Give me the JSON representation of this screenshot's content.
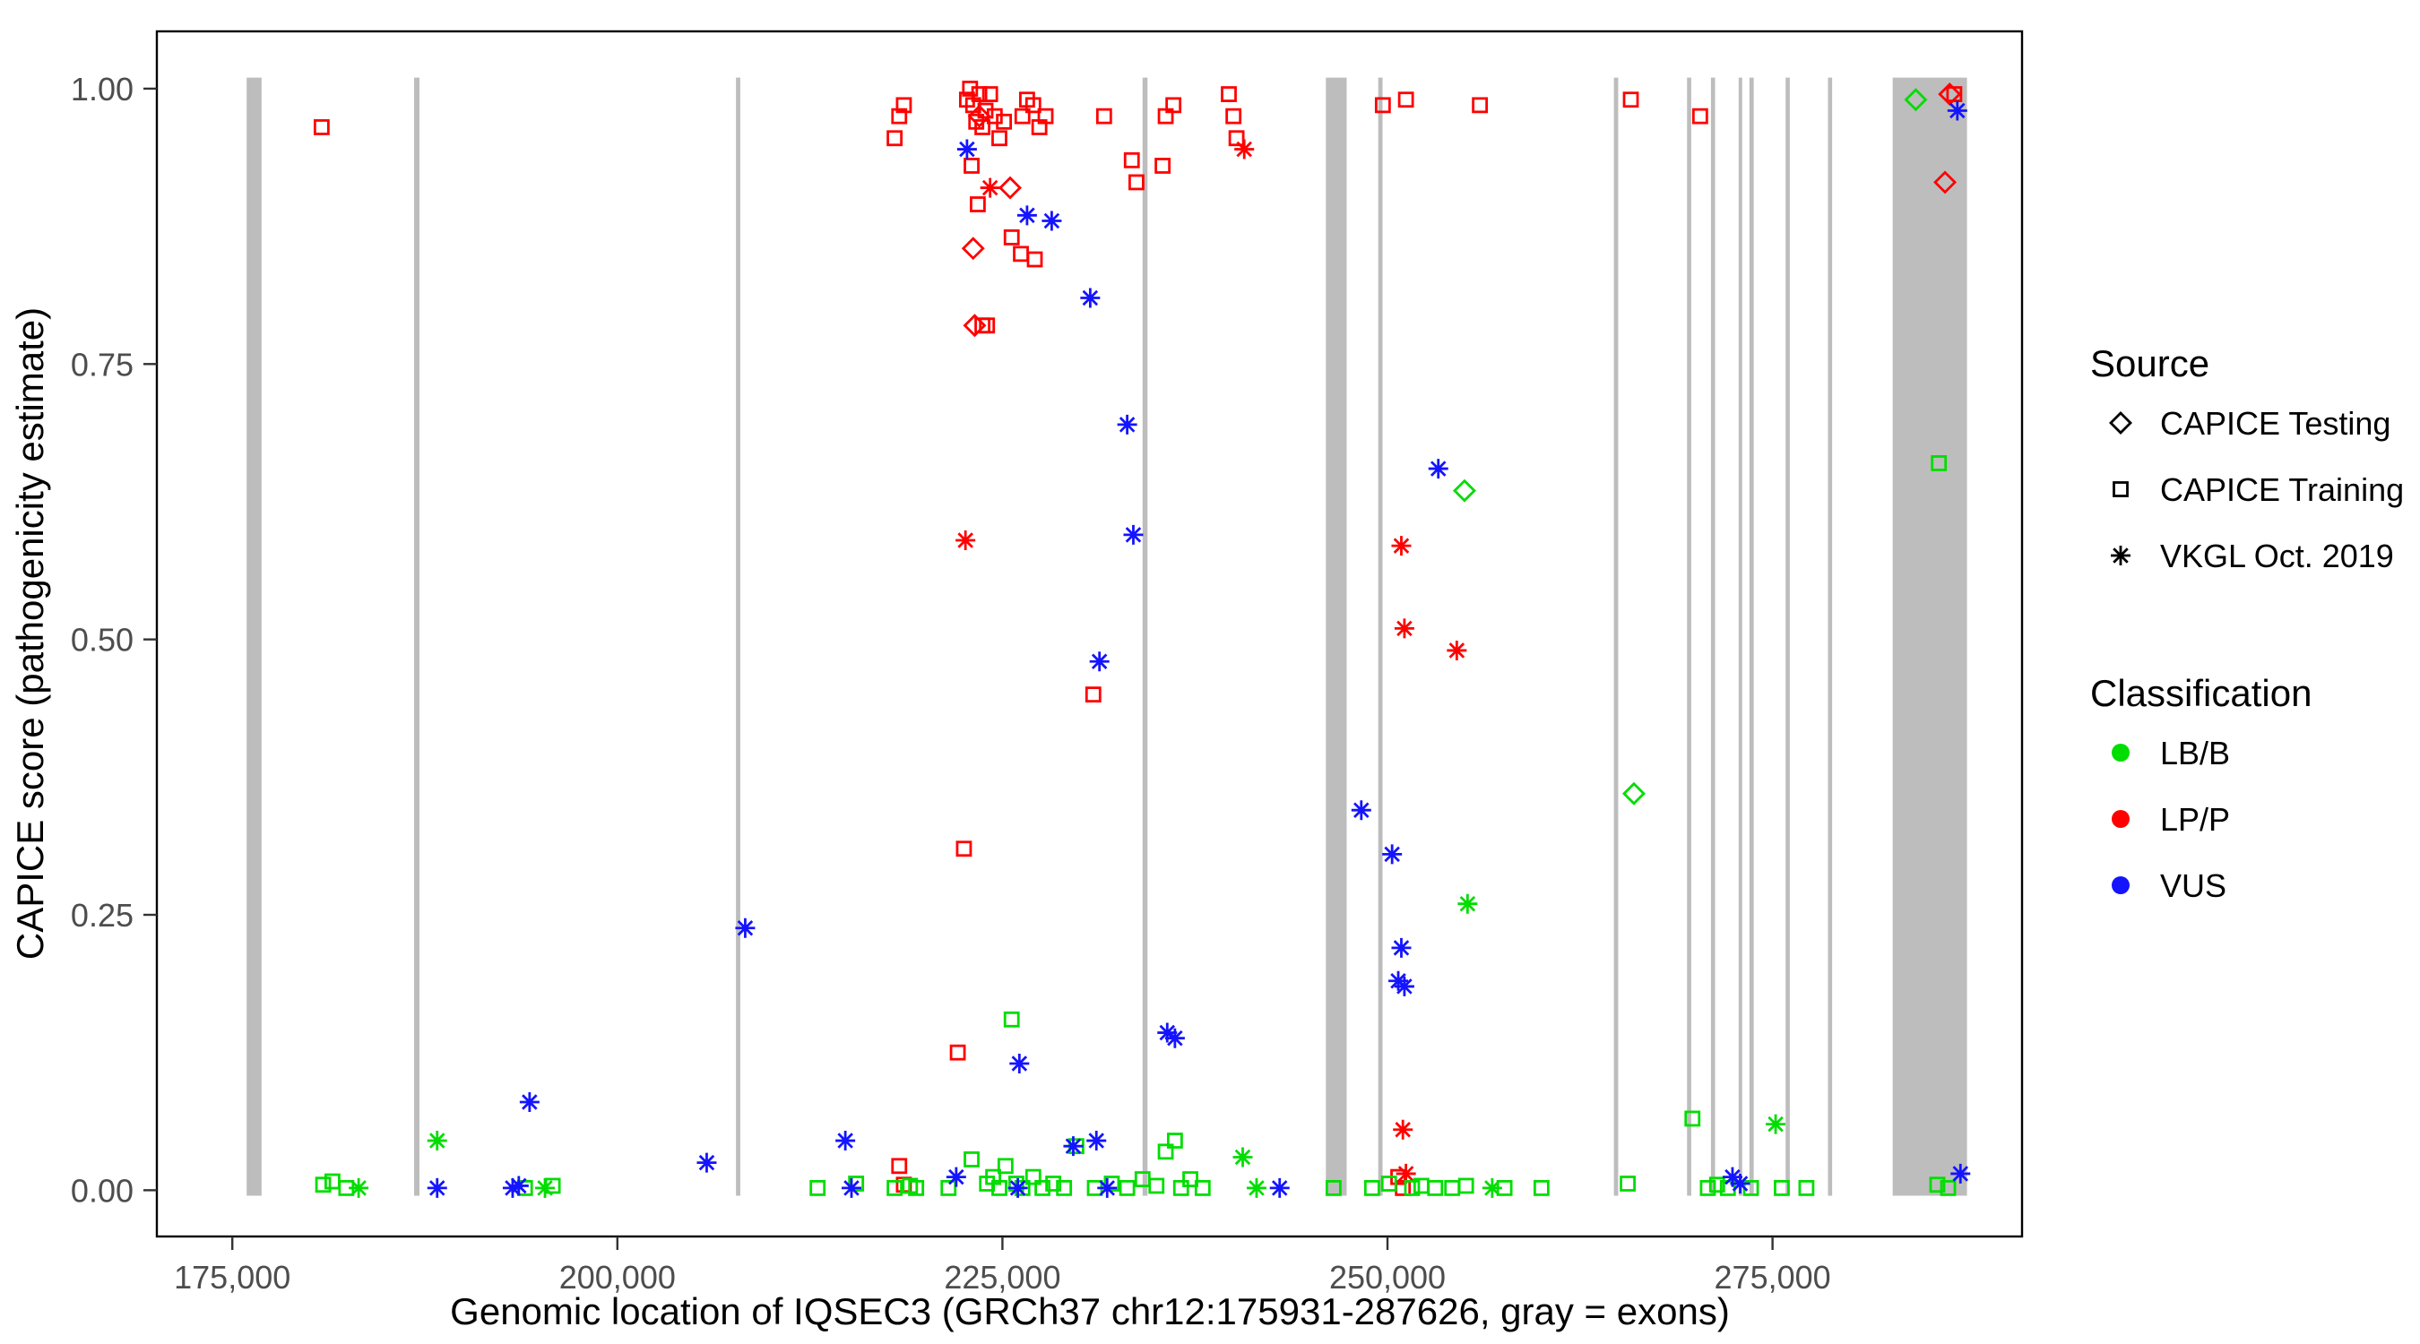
{
  "chart_data": {
    "type": "scatter",
    "title": "",
    "xlabel": "Genomic location of IQSEC3 (GRCh37 chr12:175931-287626, gray = exons)",
    "ylabel": "CAPICE score (pathogenicity estimate)",
    "xlim": [
      170100,
      291200
    ],
    "ylim": [
      -0.042,
      1.052
    ],
    "x_ticks": {
      "values": [
        175000,
        200000,
        225000,
        250000,
        275000
      ],
      "labels": [
        "175,000",
        "200,000",
        "225,000",
        "250,000",
        "275,000"
      ]
    },
    "y_ticks": {
      "values": [
        0,
        0.25,
        0.5,
        0.75,
        1.0
      ],
      "labels": [
        "0.00",
        "0.25",
        "0.50",
        "0.75",
        "1.00"
      ]
    },
    "grid": "off",
    "exon_color": "#BDBDBD",
    "exon_bands": [
      [
        175931,
        176900
      ],
      [
        186800,
        187150
      ],
      [
        207700,
        207980
      ],
      [
        234100,
        234420
      ],
      [
        246000,
        247350
      ],
      [
        249400,
        249680
      ],
      [
        264700,
        264980
      ],
      [
        269450,
        269720
      ],
      [
        271000,
        271270
      ],
      [
        272800,
        273030
      ],
      [
        273500,
        273780
      ],
      [
        275850,
        276120
      ],
      [
        278600,
        278870
      ],
      [
        282800,
        287626
      ]
    ],
    "colors": {
      "LB/B": "#00DD00",
      "LP/P": "#FF0000",
      "VUS": "#1414FF"
    },
    "legend": {
      "position": "right",
      "source": {
        "title": "Source",
        "items": [
          {
            "shape": "diamond",
            "label": "CAPICE Testing"
          },
          {
            "shape": "square",
            "label": "CAPICE Training"
          },
          {
            "shape": "asterisk",
            "label": "VKGL Oct. 2019"
          }
        ]
      },
      "classification": {
        "title": "Classification",
        "items": [
          {
            "cls": "LB/B",
            "label": "LB/B"
          },
          {
            "cls": "LP/P",
            "label": "LP/P"
          },
          {
            "cls": "VUS",
            "label": "VUS"
          }
        ]
      }
    },
    "points": [
      [
        180800,
        0.965,
        "square",
        "LP/P"
      ],
      [
        218000,
        0.955,
        "square",
        "LP/P"
      ],
      [
        218300,
        0.975,
        "square",
        "LP/P"
      ],
      [
        218600,
        0.985,
        "square",
        "LP/P"
      ],
      [
        222700,
        0.99,
        "square",
        "LP/P"
      ],
      [
        222900,
        1.0,
        "square",
        "LP/P"
      ],
      [
        223100,
        0.985,
        "square",
        "LP/P"
      ],
      [
        223300,
        0.97,
        "square",
        "LP/P"
      ],
      [
        223500,
        0.995,
        "square",
        "LP/P"
      ],
      [
        223700,
        0.965,
        "square",
        "LP/P"
      ],
      [
        223900,
        0.98,
        "square",
        "LP/P"
      ],
      [
        224200,
        0.995,
        "square",
        "LP/P"
      ],
      [
        224500,
        0.975,
        "square",
        "LP/P"
      ],
      [
        224800,
        0.955,
        "square",
        "LP/P"
      ],
      [
        225100,
        0.97,
        "square",
        "LP/P"
      ],
      [
        226300,
        0.975,
        "square",
        "LP/P"
      ],
      [
        226600,
        0.99,
        "square",
        "LP/P"
      ],
      [
        227000,
        0.985,
        "square",
        "LP/P"
      ],
      [
        227400,
        0.965,
        "square",
        "LP/P"
      ],
      [
        227800,
        0.975,
        "square",
        "LP/P"
      ],
      [
        223000,
        0.93,
        "square",
        "LP/P"
      ],
      [
        223400,
        0.895,
        "square",
        "LP/P"
      ],
      [
        225600,
        0.865,
        "square",
        "LP/P"
      ],
      [
        226200,
        0.85,
        "square",
        "LP/P"
      ],
      [
        227100,
        0.845,
        "square",
        "LP/P"
      ],
      [
        223700,
        0.785,
        "square",
        "LP/P"
      ],
      [
        224000,
        0.785,
        "square",
        "LP/P"
      ],
      [
        230900,
        0.45,
        "square",
        "LP/P"
      ],
      [
        222500,
        0.31,
        "square",
        "LP/P"
      ],
      [
        222100,
        0.125,
        "square",
        "LP/P"
      ],
      [
        218300,
        0.022,
        "square",
        "LP/P"
      ],
      [
        218600,
        0.005,
        "square",
        "LP/P"
      ],
      [
        231600,
        0.975,
        "square",
        "LP/P"
      ],
      [
        233400,
        0.935,
        "square",
        "LP/P"
      ],
      [
        233700,
        0.915,
        "square",
        "LP/P"
      ],
      [
        235400,
        0.93,
        "square",
        "LP/P"
      ],
      [
        235600,
        0.975,
        "square",
        "LP/P"
      ],
      [
        236100,
        0.985,
        "square",
        "LP/P"
      ],
      [
        239700,
        0.995,
        "square",
        "LP/P"
      ],
      [
        240000,
        0.975,
        "square",
        "LP/P"
      ],
      [
        240200,
        0.955,
        "square",
        "LP/P"
      ],
      [
        249700,
        0.985,
        "square",
        "LP/P"
      ],
      [
        251200,
        0.99,
        "square",
        "LP/P"
      ],
      [
        256000,
        0.985,
        "square",
        "LP/P"
      ],
      [
        250700,
        0.012,
        "square",
        "LP/P"
      ],
      [
        251000,
        0.002,
        "square",
        "LP/P"
      ],
      [
        265800,
        0.99,
        "square",
        "LP/P"
      ],
      [
        270300,
        0.975,
        "square",
        "LP/P"
      ],
      [
        286800,
        0.995,
        "square",
        "LP/P"
      ],
      [
        223500,
        0.975,
        "diamond",
        "LP/P"
      ],
      [
        223100,
        0.855,
        "diamond",
        "LP/P"
      ],
      [
        225500,
        0.91,
        "diamond",
        "LP/P"
      ],
      [
        223200,
        0.785,
        "diamond",
        "LP/P"
      ],
      [
        286500,
        0.995,
        "diamond",
        "LP/P"
      ],
      [
        286200,
        0.915,
        "diamond",
        "LP/P"
      ],
      [
        224200,
        0.91,
        "asterisk",
        "LP/P"
      ],
      [
        240700,
        0.945,
        "asterisk",
        "LP/P"
      ],
      [
        222600,
        0.59,
        "asterisk",
        "LP/P"
      ],
      [
        250900,
        0.585,
        "asterisk",
        "LP/P"
      ],
      [
        251100,
        0.51,
        "asterisk",
        "LP/P"
      ],
      [
        254500,
        0.49,
        "asterisk",
        "LP/P"
      ],
      [
        251000,
        0.055,
        "asterisk",
        "LP/P"
      ],
      [
        251200,
        0.015,
        "asterisk",
        "LP/P"
      ],
      [
        180900,
        0.005,
        "square",
        "LB/B"
      ],
      [
        181500,
        0.008,
        "square",
        "LB/B"
      ],
      [
        182400,
        0.002,
        "square",
        "LB/B"
      ],
      [
        194000,
        0.002,
        "square",
        "LB/B"
      ],
      [
        195800,
        0.004,
        "square",
        "LB/B"
      ],
      [
        213000,
        0.002,
        "square",
        "LB/B"
      ],
      [
        215500,
        0.006,
        "square",
        "LB/B"
      ],
      [
        218000,
        0.002,
        "square",
        "LB/B"
      ],
      [
        219000,
        0.004,
        "square",
        "LB/B"
      ],
      [
        219400,
        0.002,
        "square",
        "LB/B"
      ],
      [
        221500,
        0.002,
        "square",
        "LB/B"
      ],
      [
        223000,
        0.028,
        "square",
        "LB/B"
      ],
      [
        224000,
        0.006,
        "square",
        "LB/B"
      ],
      [
        224400,
        0.012,
        "square",
        "LB/B"
      ],
      [
        224800,
        0.002,
        "square",
        "LB/B"
      ],
      [
        225200,
        0.022,
        "square",
        "LB/B"
      ],
      [
        225600,
        0.155,
        "square",
        "LB/B"
      ],
      [
        225900,
        0.006,
        "square",
        "LB/B"
      ],
      [
        226300,
        0.002,
        "square",
        "LB/B"
      ],
      [
        227000,
        0.012,
        "square",
        "LB/B"
      ],
      [
        227600,
        0.002,
        "square",
        "LB/B"
      ],
      [
        228300,
        0.006,
        "square",
        "LB/B"
      ],
      [
        229000,
        0.002,
        "square",
        "LB/B"
      ],
      [
        229800,
        0.04,
        "square",
        "LB/B"
      ],
      [
        231000,
        0.002,
        "square",
        "LB/B"
      ],
      [
        232100,
        0.006,
        "square",
        "LB/B"
      ],
      [
        233100,
        0.002,
        "square",
        "LB/B"
      ],
      [
        234100,
        0.01,
        "square",
        "LB/B"
      ],
      [
        235000,
        0.004,
        "square",
        "LB/B"
      ],
      [
        235600,
        0.035,
        "square",
        "LB/B"
      ],
      [
        236200,
        0.045,
        "square",
        "LB/B"
      ],
      [
        236600,
        0.002,
        "square",
        "LB/B"
      ],
      [
        237200,
        0.01,
        "square",
        "LB/B"
      ],
      [
        238000,
        0.002,
        "square",
        "LB/B"
      ],
      [
        246500,
        0.002,
        "square",
        "LB/B"
      ],
      [
        249000,
        0.002,
        "square",
        "LB/B"
      ],
      [
        250100,
        0.006,
        "square",
        "LB/B"
      ],
      [
        251600,
        0.002,
        "square",
        "LB/B"
      ],
      [
        252200,
        0.004,
        "square",
        "LB/B"
      ],
      [
        253100,
        0.002,
        "square",
        "LB/B"
      ],
      [
        254200,
        0.002,
        "square",
        "LB/B"
      ],
      [
        255100,
        0.004,
        "square",
        "LB/B"
      ],
      [
        257600,
        0.002,
        "square",
        "LB/B"
      ],
      [
        260000,
        0.002,
        "square",
        "LB/B"
      ],
      [
        265600,
        0.006,
        "square",
        "LB/B"
      ],
      [
        269800,
        0.065,
        "square",
        "LB/B"
      ],
      [
        270800,
        0.002,
        "square",
        "LB/B"
      ],
      [
        271400,
        0.005,
        "square",
        "LB/B"
      ],
      [
        272100,
        0.002,
        "square",
        "LB/B"
      ],
      [
        273600,
        0.002,
        "square",
        "LB/B"
      ],
      [
        275600,
        0.002,
        "square",
        "LB/B"
      ],
      [
        277200,
        0.002,
        "square",
        "LB/B"
      ],
      [
        285700,
        0.005,
        "square",
        "LB/B"
      ],
      [
        286400,
        0.002,
        "square",
        "LB/B"
      ],
      [
        285800,
        0.66,
        "square",
        "LB/B"
      ],
      [
        255000,
        0.635,
        "diamond",
        "LB/B"
      ],
      [
        266000,
        0.36,
        "diamond",
        "LB/B"
      ],
      [
        284300,
        0.99,
        "diamond",
        "LB/B"
      ],
      [
        183200,
        0.002,
        "asterisk",
        "LB/B"
      ],
      [
        188300,
        0.045,
        "asterisk",
        "LB/B"
      ],
      [
        195300,
        0.002,
        "asterisk",
        "LB/B"
      ],
      [
        240600,
        0.03,
        "asterisk",
        "LB/B"
      ],
      [
        241500,
        0.002,
        "asterisk",
        "LB/B"
      ],
      [
        255200,
        0.26,
        "asterisk",
        "LB/B"
      ],
      [
        256800,
        0.002,
        "asterisk",
        "LB/B"
      ],
      [
        275200,
        0.06,
        "asterisk",
        "LB/B"
      ],
      [
        188300,
        0.002,
        "asterisk",
        "VUS"
      ],
      [
        193200,
        0.002,
        "asterisk",
        "VUS"
      ],
      [
        193600,
        0.004,
        "asterisk",
        "VUS"
      ],
      [
        194300,
        0.08,
        "asterisk",
        "VUS"
      ],
      [
        205800,
        0.025,
        "asterisk",
        "VUS"
      ],
      [
        208300,
        0.238,
        "asterisk",
        "VUS"
      ],
      [
        214800,
        0.045,
        "asterisk",
        "VUS"
      ],
      [
        215200,
        0.002,
        "asterisk",
        "VUS"
      ],
      [
        222000,
        0.012,
        "asterisk",
        "VUS"
      ],
      [
        222700,
        0.945,
        "asterisk",
        "VUS"
      ],
      [
        226600,
        0.885,
        "asterisk",
        "VUS"
      ],
      [
        228200,
        0.88,
        "asterisk",
        "VUS"
      ],
      [
        230700,
        0.81,
        "asterisk",
        "VUS"
      ],
      [
        233100,
        0.695,
        "asterisk",
        "VUS"
      ],
      [
        233500,
        0.595,
        "asterisk",
        "VUS"
      ],
      [
        231300,
        0.48,
        "asterisk",
        "VUS"
      ],
      [
        226100,
        0.115,
        "asterisk",
        "VUS"
      ],
      [
        226000,
        0.002,
        "asterisk",
        "VUS"
      ],
      [
        229600,
        0.04,
        "asterisk",
        "VUS"
      ],
      [
        231100,
        0.045,
        "asterisk",
        "VUS"
      ],
      [
        231800,
        0.002,
        "asterisk",
        "VUS"
      ],
      [
        235700,
        0.143,
        "asterisk",
        "VUS"
      ],
      [
        236200,
        0.138,
        "asterisk",
        "VUS"
      ],
      [
        243000,
        0.002,
        "asterisk",
        "VUS"
      ],
      [
        248300,
        0.345,
        "asterisk",
        "VUS"
      ],
      [
        250300,
        0.305,
        "asterisk",
        "VUS"
      ],
      [
        250900,
        0.22,
        "asterisk",
        "VUS"
      ],
      [
        250700,
        0.19,
        "asterisk",
        "VUS"
      ],
      [
        251100,
        0.185,
        "asterisk",
        "VUS"
      ],
      [
        253300,
        0.655,
        "asterisk",
        "VUS"
      ],
      [
        272400,
        0.012,
        "asterisk",
        "VUS"
      ],
      [
        272900,
        0.006,
        "asterisk",
        "VUS"
      ],
      [
        287000,
        0.98,
        "asterisk",
        "VUS"
      ],
      [
        287200,
        0.015,
        "asterisk",
        "VUS"
      ]
    ]
  }
}
